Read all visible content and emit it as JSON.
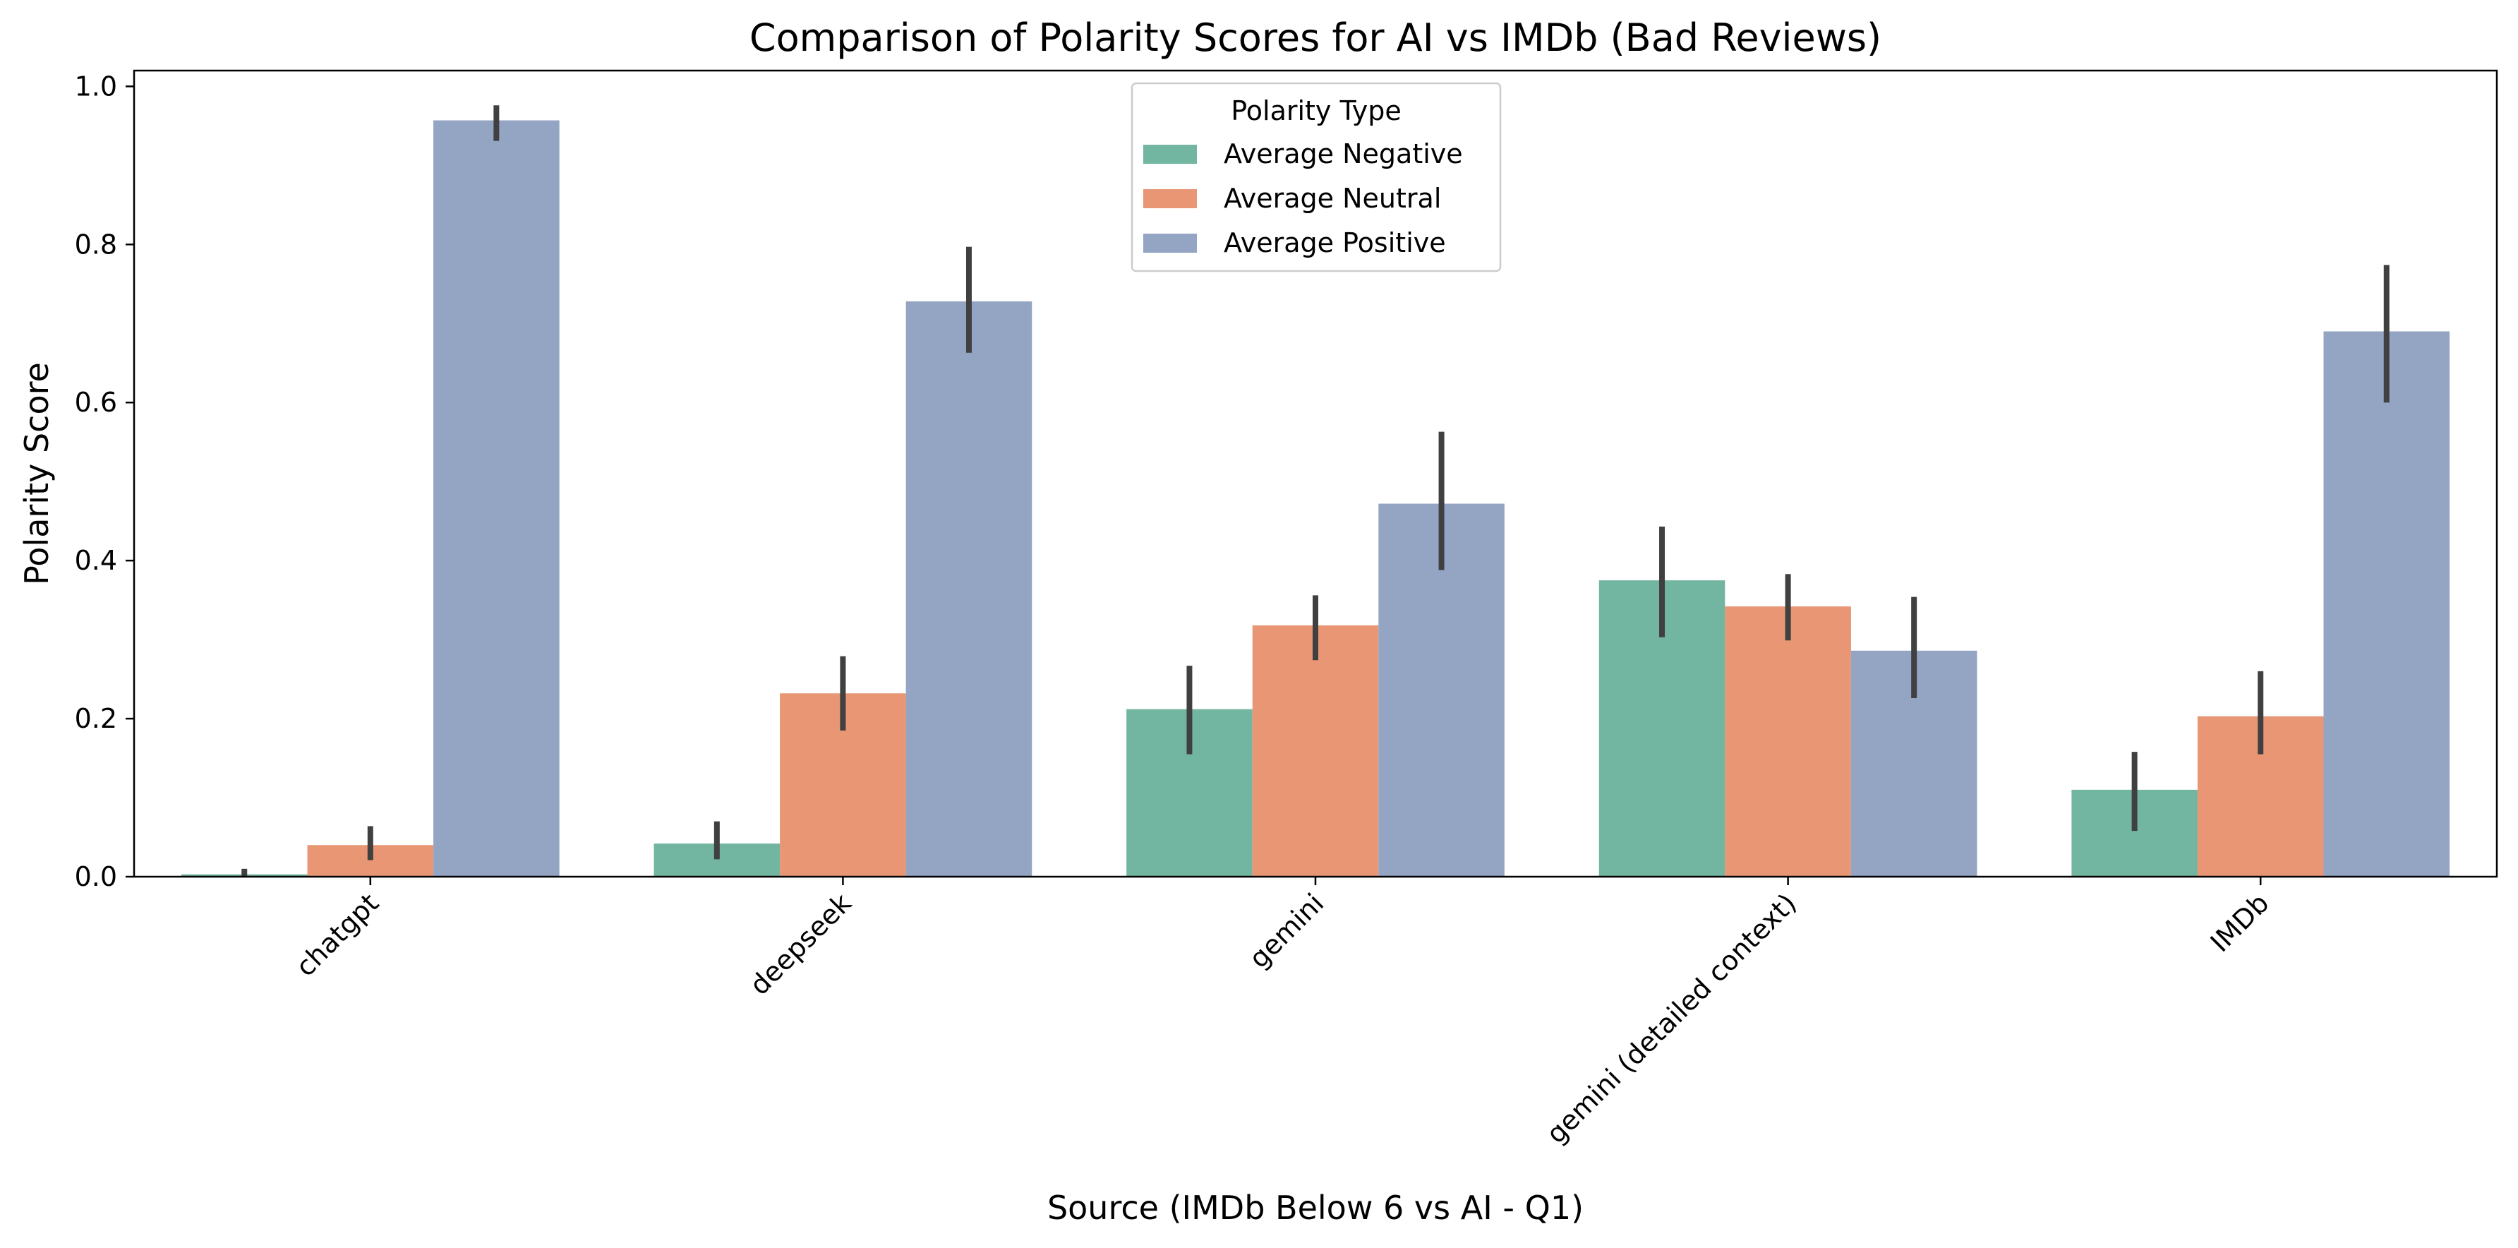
{
  "chart_data": {
    "type": "bar",
    "title": "Comparison of Polarity Scores for AI vs IMDb (Bad Reviews)",
    "xlabel": "Source (IMDb Below 6 vs AI - Q1)",
    "ylabel": "Polarity Score",
    "ylim": [
      0,
      1.02
    ],
    "yticks": [
      "0.0",
      "0.2",
      "0.4",
      "0.6",
      "0.8",
      "1.0"
    ],
    "categories": [
      "chatgpt",
      "deepseek",
      "gemini",
      "gemini (detailed context)",
      "IMDb"
    ],
    "legend": {
      "title": "Polarity Type",
      "placement": "upper-center"
    },
    "grid": false,
    "series": [
      {
        "name": "Average Negative",
        "color": "#72b5a0",
        "values": [
          0.003,
          0.042,
          0.212,
          0.375,
          0.11
        ],
        "ci": [
          [
            0.0,
            0.01
          ],
          [
            0.022,
            0.07
          ],
          [
            0.155,
            0.267
          ],
          [
            0.303,
            0.443
          ],
          [
            0.058,
            0.158
          ]
        ]
      },
      {
        "name": "Average Neutral",
        "color": "#e89674",
        "values": [
          0.04,
          0.232,
          0.318,
          0.342,
          0.203
        ],
        "ci": [
          [
            0.021,
            0.064
          ],
          [
            0.185,
            0.279
          ],
          [
            0.274,
            0.356
          ],
          [
            0.299,
            0.383
          ],
          [
            0.155,
            0.26
          ]
        ]
      },
      {
        "name": "Average Positive",
        "color": "#94a4c3",
        "values": [
          0.957,
          0.728,
          0.472,
          0.286,
          0.69
        ],
        "ci": [
          [
            0.931,
            0.976
          ],
          [
            0.663,
            0.797
          ],
          [
            0.388,
            0.563
          ],
          [
            0.226,
            0.354
          ],
          [
            0.6,
            0.774
          ]
        ]
      }
    ]
  }
}
